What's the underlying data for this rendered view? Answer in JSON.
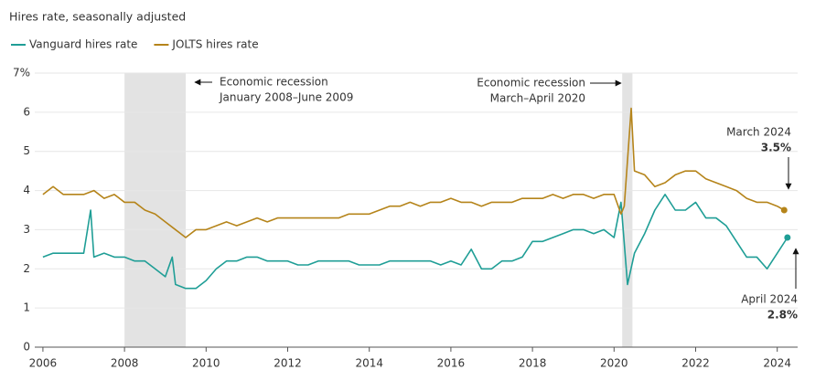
{
  "chart_data": {
    "type": "line",
    "title": "Hires rate, seasonally adjusted",
    "xlim": [
      2005.8,
      2024.5
    ],
    "xticks": [
      2006,
      2008,
      2010,
      2012,
      2014,
      2016,
      2018,
      2020,
      2022,
      2024
    ],
    "ylim": [
      0,
      7
    ],
    "yticks": [
      0,
      1,
      2,
      3,
      4,
      5,
      6,
      {
        "value": 7,
        "label": "7%"
      }
    ],
    "grid": true,
    "recessions": [
      {
        "start": 2008.0,
        "end": 2009.5
      },
      {
        "start": 2020.2,
        "end": 2020.45
      }
    ],
    "series": [
      {
        "name": "Vanguard hires rate",
        "color": "#1f9e96",
        "x": [
          2006.0,
          2006.25,
          2006.5,
          2006.75,
          2007.0,
          2007.17,
          2007.25,
          2007.5,
          2007.75,
          2008.0,
          2008.25,
          2008.5,
          2008.75,
          2009.0,
          2009.17,
          2009.25,
          2009.5,
          2009.75,
          2010.0,
          2010.25,
          2010.5,
          2010.75,
          2011.0,
          2011.25,
          2011.5,
          2011.75,
          2012.0,
          2012.25,
          2012.5,
          2012.75,
          2013.0,
          2013.25,
          2013.5,
          2013.75,
          2014.0,
          2014.25,
          2014.5,
          2014.75,
          2015.0,
          2015.25,
          2015.5,
          2015.75,
          2016.0,
          2016.25,
          2016.5,
          2016.75,
          2017.0,
          2017.25,
          2017.5,
          2017.75,
          2018.0,
          2018.25,
          2018.5,
          2018.75,
          2019.0,
          2019.25,
          2019.5,
          2019.75,
          2020.0,
          2020.17,
          2020.33,
          2020.5,
          2020.75,
          2021.0,
          2021.25,
          2021.5,
          2021.75,
          2022.0,
          2022.25,
          2022.5,
          2022.75,
          2023.0,
          2023.25,
          2023.5,
          2023.75,
          2024.0,
          2024.25
        ],
        "values": [
          2.3,
          2.4,
          2.4,
          2.4,
          2.4,
          3.5,
          2.3,
          2.4,
          2.3,
          2.3,
          2.2,
          2.2,
          2.0,
          1.8,
          2.3,
          1.6,
          1.5,
          1.5,
          1.7,
          2.0,
          2.2,
          2.2,
          2.3,
          2.3,
          2.2,
          2.2,
          2.2,
          2.1,
          2.1,
          2.2,
          2.2,
          2.2,
          2.2,
          2.1,
          2.1,
          2.1,
          2.2,
          2.2,
          2.2,
          2.2,
          2.2,
          2.1,
          2.2,
          2.1,
          2.5,
          2.0,
          2.0,
          2.2,
          2.2,
          2.3,
          2.7,
          2.7,
          2.8,
          2.9,
          3.0,
          3.0,
          2.9,
          3.0,
          2.8,
          3.7,
          1.6,
          2.4,
          2.9,
          3.5,
          3.9,
          3.5,
          3.5,
          3.7,
          3.3,
          3.3,
          3.1,
          2.7,
          2.3,
          2.3,
          2.0,
          2.4,
          2.8
        ]
      },
      {
        "name": "JOLTS hires rate",
        "color": "#b5841a",
        "x": [
          2006.0,
          2006.25,
          2006.5,
          2006.75,
          2007.0,
          2007.25,
          2007.5,
          2007.75,
          2008.0,
          2008.25,
          2008.5,
          2008.75,
          2009.0,
          2009.25,
          2009.5,
          2009.75,
          2010.0,
          2010.25,
          2010.5,
          2010.75,
          2011.0,
          2011.25,
          2011.5,
          2011.75,
          2012.0,
          2012.25,
          2012.5,
          2012.75,
          2013.0,
          2013.25,
          2013.5,
          2013.75,
          2014.0,
          2014.25,
          2014.5,
          2014.75,
          2015.0,
          2015.25,
          2015.5,
          2015.75,
          2016.0,
          2016.25,
          2016.5,
          2016.75,
          2017.0,
          2017.25,
          2017.5,
          2017.75,
          2018.0,
          2018.25,
          2018.5,
          2018.75,
          2019.0,
          2019.25,
          2019.5,
          2019.75,
          2020.0,
          2020.17,
          2020.25,
          2020.42,
          2020.5,
          2020.75,
          2021.0,
          2021.25,
          2021.5,
          2021.75,
          2022.0,
          2022.25,
          2022.5,
          2022.75,
          2023.0,
          2023.25,
          2023.5,
          2023.75,
          2024.0,
          2024.17
        ],
        "values": [
          3.9,
          4.1,
          3.9,
          3.9,
          3.9,
          4.0,
          3.8,
          3.9,
          3.7,
          3.7,
          3.5,
          3.4,
          3.2,
          3.0,
          2.8,
          3.0,
          3.0,
          3.1,
          3.2,
          3.1,
          3.2,
          3.3,
          3.2,
          3.3,
          3.3,
          3.3,
          3.3,
          3.3,
          3.3,
          3.3,
          3.4,
          3.4,
          3.4,
          3.5,
          3.6,
          3.6,
          3.7,
          3.6,
          3.7,
          3.7,
          3.8,
          3.7,
          3.7,
          3.6,
          3.7,
          3.7,
          3.7,
          3.8,
          3.8,
          3.8,
          3.9,
          3.8,
          3.9,
          3.9,
          3.8,
          3.9,
          3.9,
          3.4,
          3.6,
          6.1,
          4.5,
          4.4,
          4.1,
          4.2,
          4.4,
          4.5,
          4.5,
          4.3,
          4.2,
          4.1,
          4.0,
          3.8,
          3.7,
          3.7,
          3.6,
          3.5
        ]
      }
    ],
    "annotations": [
      {
        "lines": [
          "Economic recession",
          "January 2008–June 2009"
        ]
      },
      {
        "lines": [
          "Economic recession",
          "March–April 2020"
        ]
      },
      {
        "lines": [
          "March 2024",
          "3.5%"
        ]
      },
      {
        "lines": [
          "April 2024",
          "2.8%"
        ]
      }
    ]
  }
}
